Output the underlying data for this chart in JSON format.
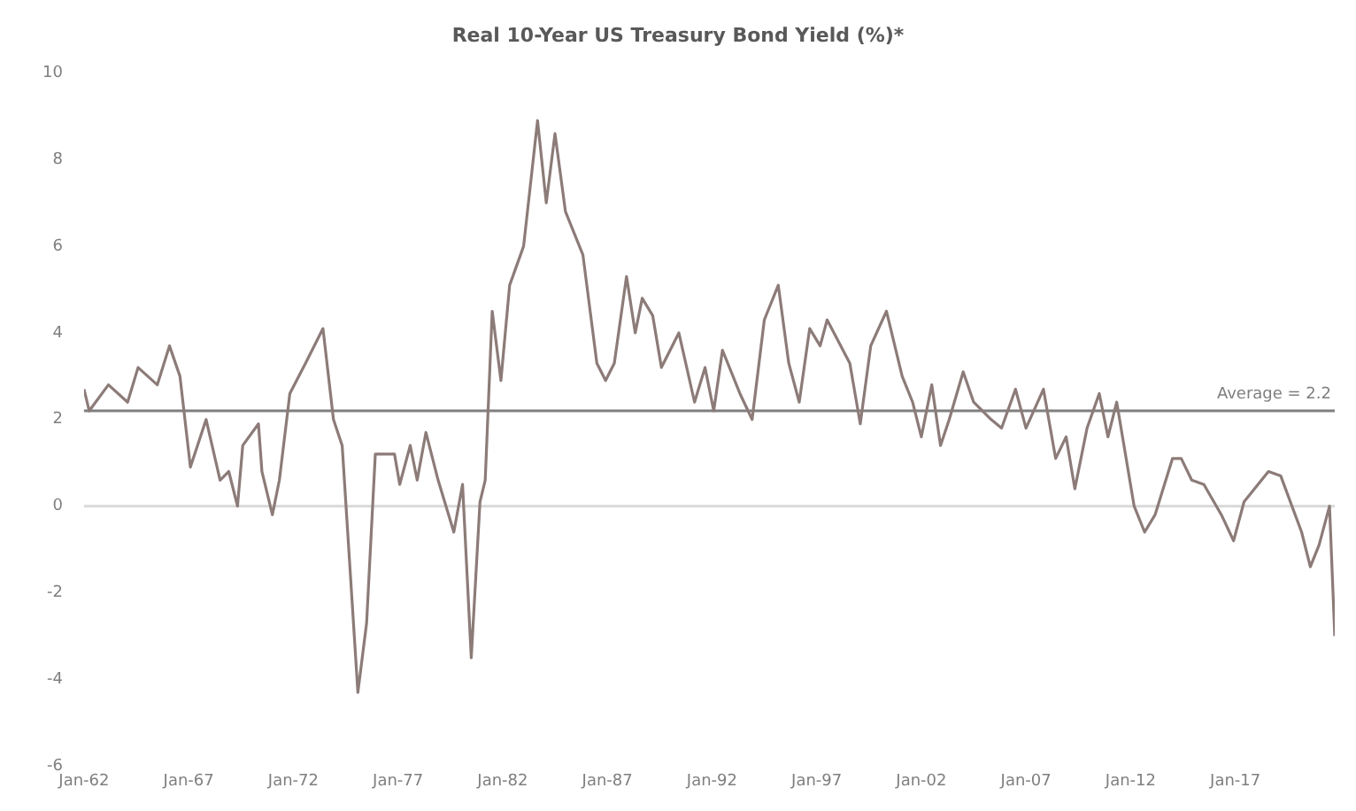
{
  "chart_data": {
    "type": "line",
    "title": "Real 10-Year US Treasury Bond Yield (%)*",
    "x": [
      "1962-01",
      "1962-04",
      "1963-03",
      "1964-02",
      "1964-08",
      "1965-07",
      "1966-02",
      "1966-08",
      "1967-02",
      "1967-11",
      "1968-07",
      "1968-12",
      "1969-05",
      "1969-08",
      "1970-05",
      "1970-07",
      "1971-01",
      "1971-05",
      "1971-11",
      "1972-08",
      "1973-06",
      "1973-12",
      "1974-05",
      "1975-02",
      "1975-07",
      "1975-12",
      "1976-11",
      "1977-02",
      "1977-08",
      "1977-12",
      "1978-05",
      "1978-12",
      "1979-09",
      "1980-02",
      "1980-07",
      "1980-12",
      "1981-03",
      "1981-07",
      "1981-12",
      "1982-05",
      "1983-01",
      "1983-09",
      "1984-02",
      "1984-07",
      "1985-01",
      "1985-11",
      "1986-07",
      "1986-12",
      "1987-05",
      "1987-12",
      "1988-05",
      "1988-09",
      "1989-03",
      "1989-08",
      "1990-06",
      "1991-03",
      "1991-09",
      "1992-02",
      "1992-07",
      "1993-05",
      "1993-12",
      "1994-07",
      "1995-03",
      "1995-09",
      "1996-03",
      "1996-09",
      "1997-03",
      "1997-07",
      "1998-08",
      "1999-02",
      "1999-08",
      "2000-05",
      "2001-02",
      "2001-08",
      "2002-01",
      "2002-07",
      "2002-12",
      "2003-05",
      "2004-01",
      "2004-07",
      "2005-05",
      "2005-11",
      "2006-07",
      "2007-01",
      "2007-11",
      "2008-06",
      "2008-12",
      "2009-05",
      "2009-12",
      "2010-07",
      "2010-12",
      "2011-05",
      "2012-03",
      "2012-09",
      "2013-03",
      "2014-01",
      "2014-06",
      "2014-12",
      "2015-07",
      "2016-05",
      "2016-12",
      "2017-06",
      "2018-08",
      "2019-03",
      "2020-03",
      "2020-08",
      "2021-01",
      "2021-07",
      "2021-10"
    ],
    "series": [
      {
        "color": "#8c7b78",
        "values": [
          2.7,
          2.2,
          2.8,
          2.4,
          3.2,
          2.8,
          3.7,
          3.0,
          0.9,
          2.0,
          0.6,
          0.8,
          0.0,
          1.4,
          1.9,
          0.8,
          -0.2,
          0.6,
          2.6,
          3.3,
          4.1,
          2.0,
          1.4,
          -4.3,
          -2.7,
          1.2,
          1.2,
          0.5,
          1.4,
          0.6,
          1.7,
          0.6,
          -0.6,
          0.5,
          -3.5,
          0.1,
          0.6,
          4.5,
          2.9,
          5.1,
          6.0,
          8.9,
          7.0,
          8.6,
          6.8,
          5.8,
          3.3,
          2.9,
          3.3,
          5.3,
          4.0,
          4.8,
          4.4,
          3.2,
          4.0,
          2.4,
          3.2,
          2.2,
          3.6,
          2.6,
          2.0,
          4.3,
          5.1,
          3.3,
          2.4,
          4.1,
          3.7,
          4.3,
          3.3,
          1.9,
          3.7,
          4.5,
          3.0,
          2.4,
          1.6,
          2.8,
          1.4,
          2.0,
          3.1,
          2.4,
          2.0,
          1.8,
          2.7,
          1.8,
          2.7,
          1.1,
          1.6,
          0.4,
          1.8,
          2.6,
          1.6,
          2.4,
          0.0,
          -0.6,
          -0.2,
          1.1,
          1.1,
          0.6,
          0.5,
          -0.2,
          -0.8,
          0.1,
          0.8,
          0.7,
          -0.6,
          -1.4,
          -0.9,
          0.0,
          -3.0
        ]
      }
    ],
    "xlim": [
      "1962-01",
      "2021-10"
    ],
    "xticks": [
      {
        "value": "1962-01",
        "label": "Jan-62"
      },
      {
        "value": "1967-01",
        "label": "Jan-67"
      },
      {
        "value": "1972-01",
        "label": "Jan-72"
      },
      {
        "value": "1977-01",
        "label": "Jan-77"
      },
      {
        "value": "1982-01",
        "label": "Jan-82"
      },
      {
        "value": "1987-01",
        "label": "Jan-87"
      },
      {
        "value": "1992-01",
        "label": "Jan-92"
      },
      {
        "value": "1997-01",
        "label": "Jan-97"
      },
      {
        "value": "2002-01",
        "label": "Jan-02"
      },
      {
        "value": "2007-01",
        "label": "Jan-07"
      },
      {
        "value": "2012-01",
        "label": "Jan-12"
      },
      {
        "value": "2017-01",
        "label": "Jan-17"
      }
    ],
    "ylim": [
      -6,
      10
    ],
    "yticks": [
      -6,
      -4,
      -2,
      0,
      2,
      4,
      6,
      8,
      10
    ],
    "ref_lines": [
      {
        "axis": "y",
        "value": 2.2,
        "label": "Average = 2.2",
        "color": "#7f7f7f"
      },
      {
        "axis": "y",
        "value": 0,
        "color": "#d9d9d9"
      }
    ],
    "grid": false,
    "legend": false,
    "marker": "none",
    "line_style": "solid"
  }
}
